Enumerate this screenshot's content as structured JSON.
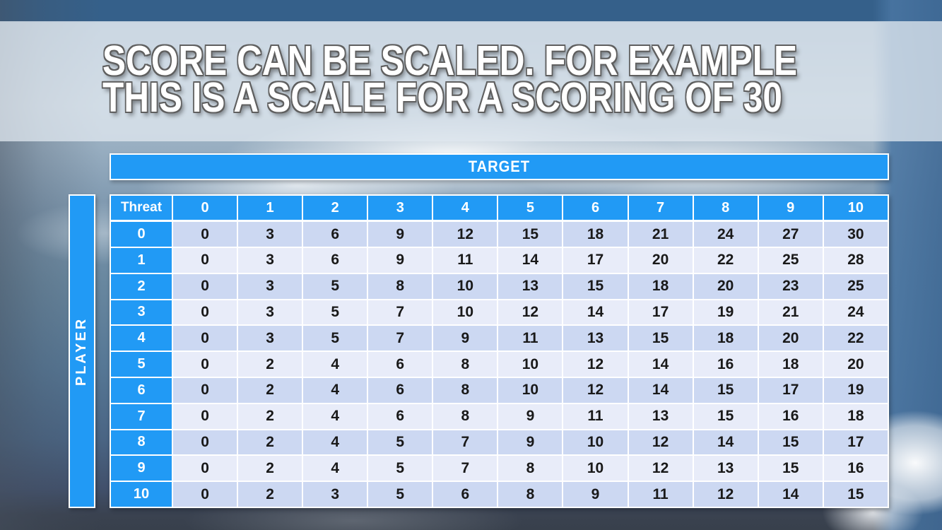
{
  "title": {
    "line1": "SCORE CAN BE SCALED. FOR EXAMPLE",
    "line2": "THIS IS A SCALE FOR A SCORING OF 30"
  },
  "target": {
    "label": "TARGET"
  },
  "player": {
    "label": "PLAYER"
  },
  "table": {
    "corner_label": "Threat",
    "col_headers": [
      "0",
      "1",
      "2",
      "3",
      "4",
      "5",
      "6",
      "7",
      "8",
      "9",
      "10"
    ],
    "rows": [
      {
        "threat": "0",
        "values": [
          0,
          3,
          6,
          9,
          12,
          15,
          18,
          21,
          24,
          27,
          30
        ]
      },
      {
        "threat": "1",
        "values": [
          0,
          3,
          6,
          9,
          11,
          14,
          17,
          20,
          22,
          25,
          28
        ]
      },
      {
        "threat": "2",
        "values": [
          0,
          3,
          5,
          8,
          10,
          13,
          15,
          18,
          20,
          23,
          25
        ]
      },
      {
        "threat": "3",
        "values": [
          0,
          3,
          5,
          7,
          10,
          12,
          14,
          17,
          19,
          21,
          24
        ]
      },
      {
        "threat": "4",
        "values": [
          0,
          3,
          5,
          7,
          9,
          11,
          13,
          15,
          18,
          20,
          22
        ]
      },
      {
        "threat": "5",
        "values": [
          0,
          2,
          4,
          6,
          8,
          10,
          12,
          14,
          16,
          18,
          20
        ]
      },
      {
        "threat": "6",
        "values": [
          0,
          2,
          4,
          6,
          8,
          10,
          12,
          14,
          15,
          17,
          19
        ]
      },
      {
        "threat": "7",
        "values": [
          0,
          2,
          4,
          6,
          8,
          9,
          11,
          13,
          15,
          16,
          18
        ]
      },
      {
        "threat": "8",
        "values": [
          0,
          2,
          4,
          5,
          7,
          9,
          10,
          12,
          14,
          15,
          17
        ]
      },
      {
        "threat": "9",
        "values": [
          0,
          2,
          4,
          5,
          7,
          8,
          10,
          12,
          13,
          15,
          16
        ]
      },
      {
        "threat": "10",
        "values": [
          0,
          2,
          3,
          5,
          6,
          8,
          9,
          11,
          12,
          14,
          15
        ]
      }
    ]
  },
  "colors": {
    "header_blue": "#219af5",
    "row_even": "#ccd8f2",
    "row_odd": "#e8ecf9",
    "cell_text": "#191919",
    "title_text": "#ffffff",
    "title_outline": "#5f5f5f",
    "top_strip": "#35608a",
    "title_band": "rgba(223,231,239,0.76)"
  }
}
